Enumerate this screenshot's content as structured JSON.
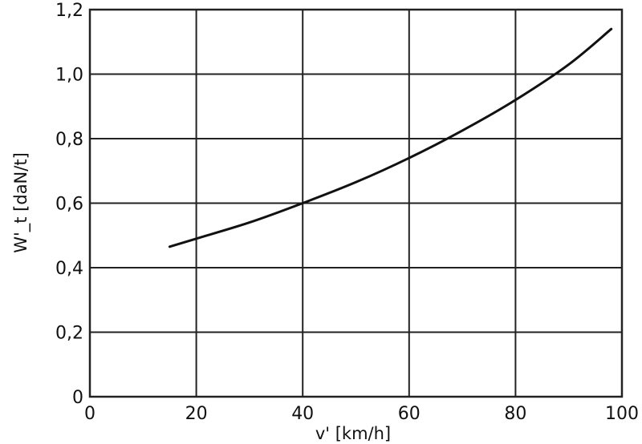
{
  "chart_data": {
    "type": "line",
    "xlabel": "v' [km/h]",
    "ylabel": "W'_t [daN/t]",
    "xlim": [
      0,
      100
    ],
    "ylim": [
      0,
      1.2
    ],
    "x_ticks": [
      "0",
      "20",
      "40",
      "60",
      "80",
      "100"
    ],
    "x_tick_values": [
      0,
      20,
      40,
      60,
      80,
      100
    ],
    "y_ticks": [
      "0",
      "0,2",
      "0,4",
      "0,6",
      "0,8",
      "1,0",
      "1,2"
    ],
    "y_tick_values": [
      0,
      0.2,
      0.4,
      0.6,
      0.8,
      1.0,
      1.2
    ],
    "grid": true,
    "series": [
      {
        "x": [
          15,
          20,
          30,
          40,
          50,
          60,
          70,
          80,
          90,
          98
        ],
        "y": [
          0.465,
          0.49,
          0.54,
          0.6,
          0.665,
          0.74,
          0.825,
          0.92,
          1.03,
          1.14
        ]
      }
    ],
    "colors": {
      "line": "#111111",
      "grid": "#222222",
      "background": "#ffffff"
    }
  }
}
